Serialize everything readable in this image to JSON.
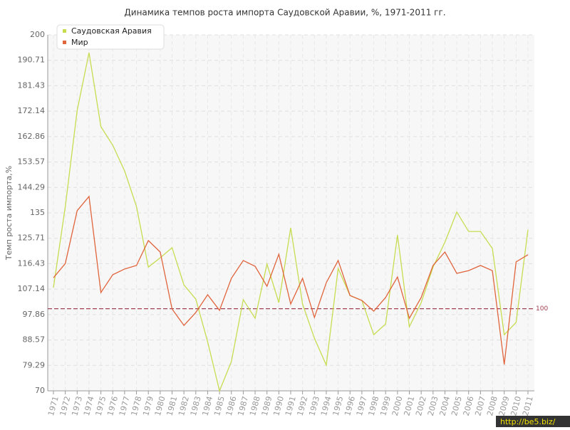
{
  "chart_data": {
    "type": "line",
    "title": "Динамика темпов роста импорта Саудовской Аравии, %, 1971-2011 гг.",
    "y_label": "Темп роста импорта,%",
    "watermark": "http://be5.biz/",
    "categories": [
      "1971",
      "1972",
      "1973",
      "1974",
      "1975",
      "1976",
      "1977",
      "1978",
      "1979",
      "1980",
      "1981",
      "1982",
      "1983",
      "1984",
      "1985",
      "1986",
      "1987",
      "1988",
      "1989",
      "1990",
      "1991",
      "1992",
      "1993",
      "1994",
      "1995",
      "1996",
      "1997",
      "1998",
      "1999",
      "2000",
      "2001",
      "2002",
      "2003",
      "2004",
      "2005",
      "2006",
      "2007",
      "2008",
      "2009",
      "2010",
      "2011"
    ],
    "series": [
      {
        "name": "Саудовская Аравия",
        "color": "#c8dc50",
        "values": [
          107.7,
          137.3,
          172.4,
          193.5,
          166.5,
          159.7,
          150.3,
          137.3,
          115.2,
          118.6,
          122.3,
          108.7,
          103.5,
          87.9,
          70,
          80.7,
          103.3,
          96.5,
          116.3,
          102.2,
          129.5,
          101.7,
          89.2,
          79.4,
          114.7,
          104.8,
          103,
          90.5,
          94.4,
          126.9,
          93.4,
          102.2,
          115.2,
          124.3,
          135.3,
          128.2,
          128.2,
          122,
          90.5,
          95,
          128.8
        ]
      },
      {
        "name": "Мир",
        "color": "#e0643c",
        "values": [
          111.3,
          116.5,
          135.8,
          141,
          105.9,
          112.4,
          114.5,
          115.8,
          124.9,
          120.7,
          99.9,
          93.9,
          98.6,
          105.1,
          99.4,
          111.1,
          117.6,
          115.5,
          108.2,
          119.9,
          101.7,
          111.1,
          96.8,
          109.5,
          117.6,
          104.8,
          103,
          99.1,
          104.1,
          111.6,
          96.5,
          104.1,
          115.8,
          120.7,
          112.9,
          113.9,
          115.8,
          113.9,
          79.6,
          117.1,
          119.7
        ]
      }
    ],
    "reference_line": 100,
    "reference_color": "#a04050",
    "ylim": [
      70,
      200
    ],
    "yticks": [
      70,
      79.29,
      88.57,
      97.86,
      107.14,
      116.43,
      125.71,
      135,
      144.29,
      153.57,
      162.86,
      172.14,
      181.43,
      190.71,
      200
    ],
    "grid": true,
    "legend": "upper-left"
  }
}
